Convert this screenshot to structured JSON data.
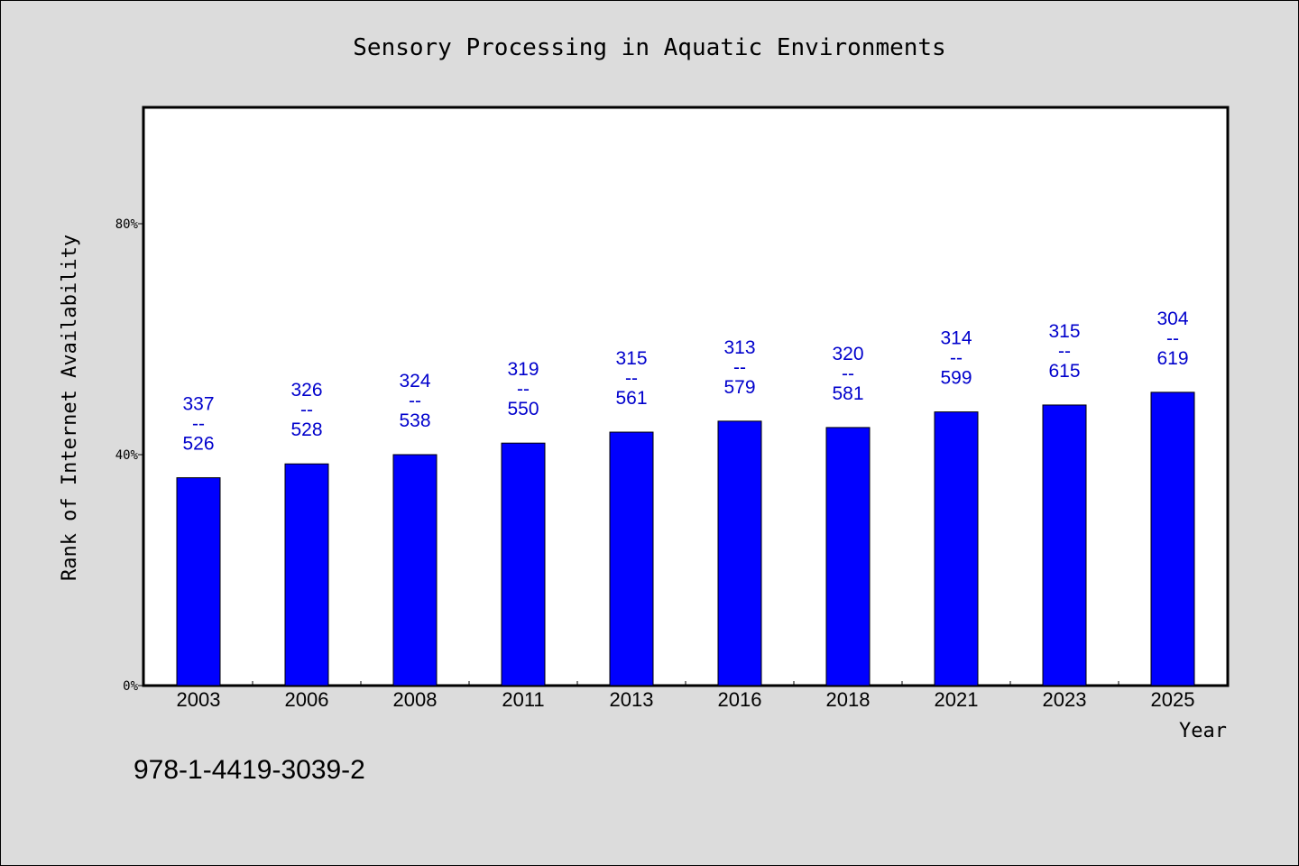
{
  "chart_data": {
    "type": "bar",
    "title": "Sensory Processing in Aquatic Environments",
    "xlabel": "Year",
    "ylabel": "Rank of Internet Availability",
    "categories": [
      "2003",
      "2006",
      "2008",
      "2011",
      "2013",
      "2016",
      "2018",
      "2021",
      "2023",
      "2025"
    ],
    "values": [
      36,
      38.4,
      40,
      42,
      43.9,
      45.8,
      44.7,
      47.4,
      48.6,
      50.8
    ],
    "bar_labels": [
      {
        "top": "337",
        "sep": "--",
        "bottom": "526"
      },
      {
        "top": "326",
        "sep": "--",
        "bottom": "528"
      },
      {
        "top": "324",
        "sep": "--",
        "bottom": "538"
      },
      {
        "top": "319",
        "sep": "--",
        "bottom": "550"
      },
      {
        "top": "315",
        "sep": "--",
        "bottom": "561"
      },
      {
        "top": "313",
        "sep": "--",
        "bottom": "579"
      },
      {
        "top": "320",
        "sep": "--",
        "bottom": "581"
      },
      {
        "top": "314",
        "sep": "--",
        "bottom": "599"
      },
      {
        "top": "315",
        "sep": "--",
        "bottom": "615"
      },
      {
        "top": "304",
        "sep": "--",
        "bottom": "619"
      }
    ],
    "yticks": [
      {
        "value": 0,
        "label": "0%"
      },
      {
        "value": 40,
        "label": "40%"
      },
      {
        "value": 80,
        "label": "80%"
      }
    ],
    "ylim": [
      0,
      100
    ],
    "grid": false,
    "colors": {
      "bar": "#0000ff",
      "label": "#0000cc",
      "plot_background": "#ffffff",
      "page_background": "#dcdcdc"
    }
  },
  "footer_code": "978-1-4419-3039-2"
}
